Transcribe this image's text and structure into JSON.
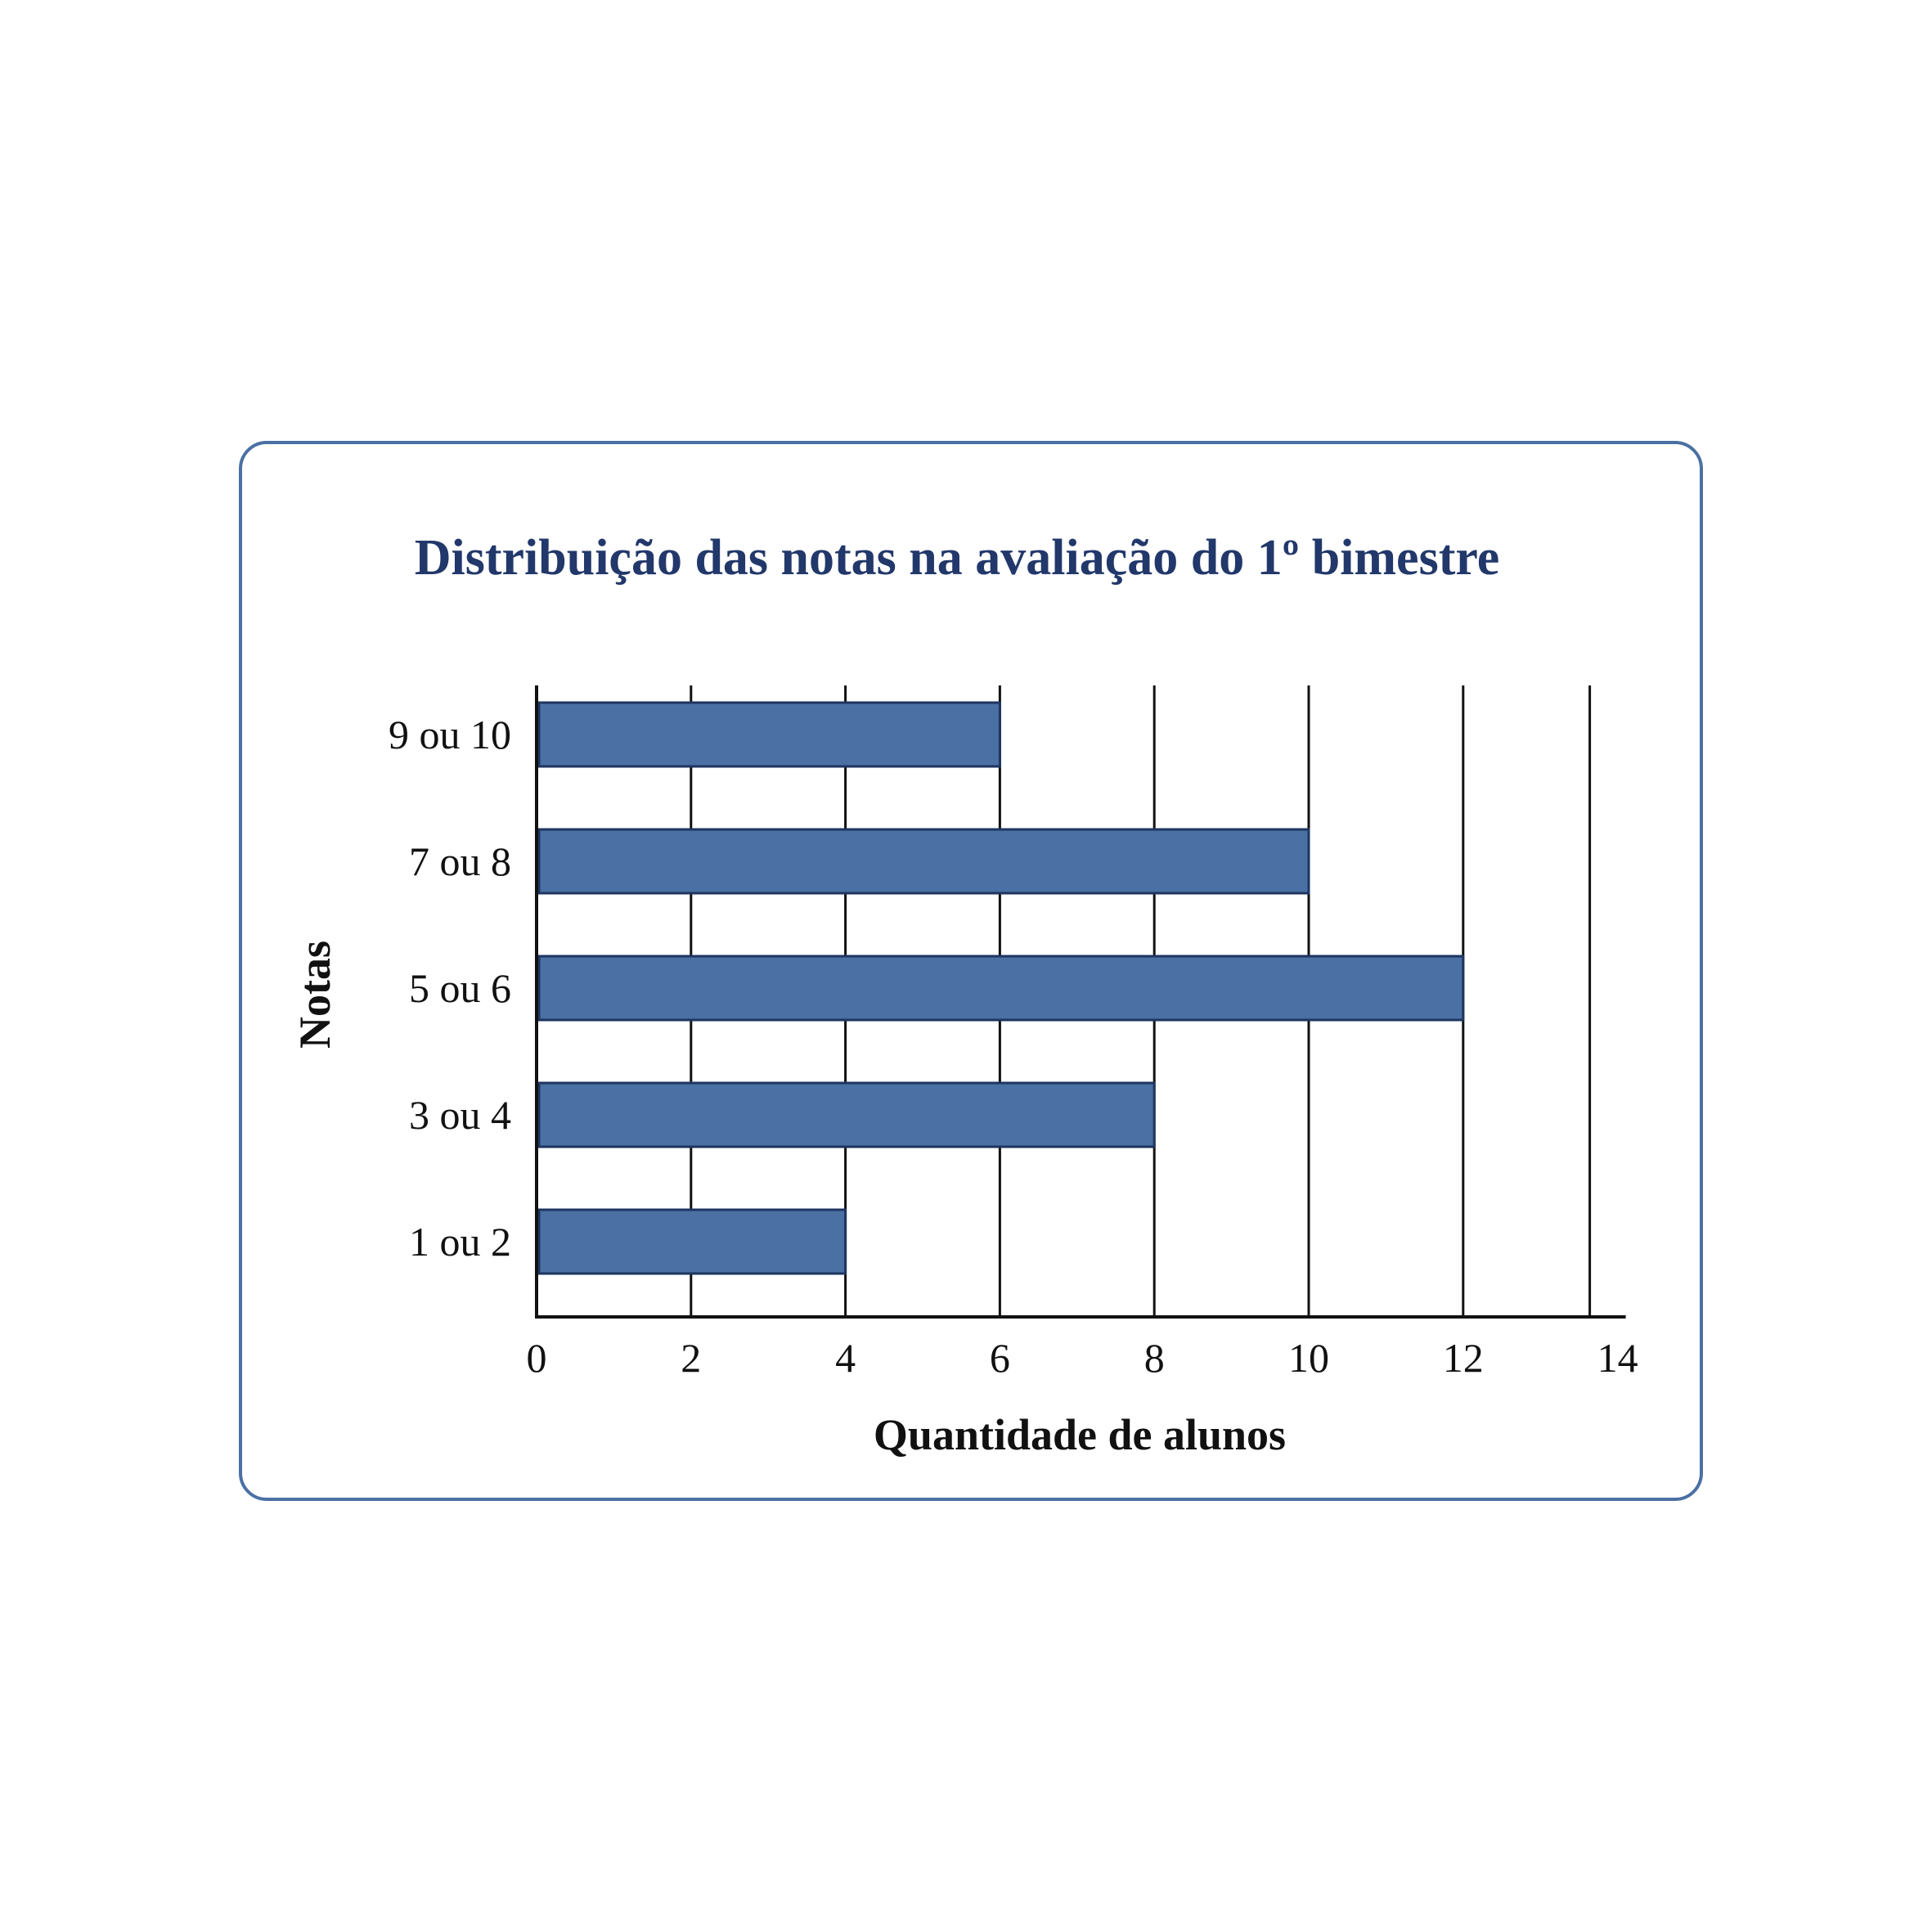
{
  "colors": {
    "bar_fill": "#4a70a4",
    "bar_stroke": "#1f3560",
    "title": "#22386b",
    "frame": "#4a70a4"
  },
  "chart_data": {
    "type": "bar",
    "orientation": "horizontal",
    "title": "Distribuição das notas na avaliação do 1º bimestre",
    "xlabel": "Quantidade de alunos",
    "ylabel": "Notas",
    "categories": [
      "1 ou 2",
      "3 ou 4",
      "5 ou 6",
      "7 ou 8",
      "9 ou 10"
    ],
    "values": [
      4,
      8,
      12,
      10,
      6
    ],
    "xlim": [
      0,
      14
    ],
    "xticks": [
      0,
      2,
      4,
      6,
      8,
      10,
      12,
      14
    ],
    "grid": "vertical",
    "legend": "none"
  }
}
